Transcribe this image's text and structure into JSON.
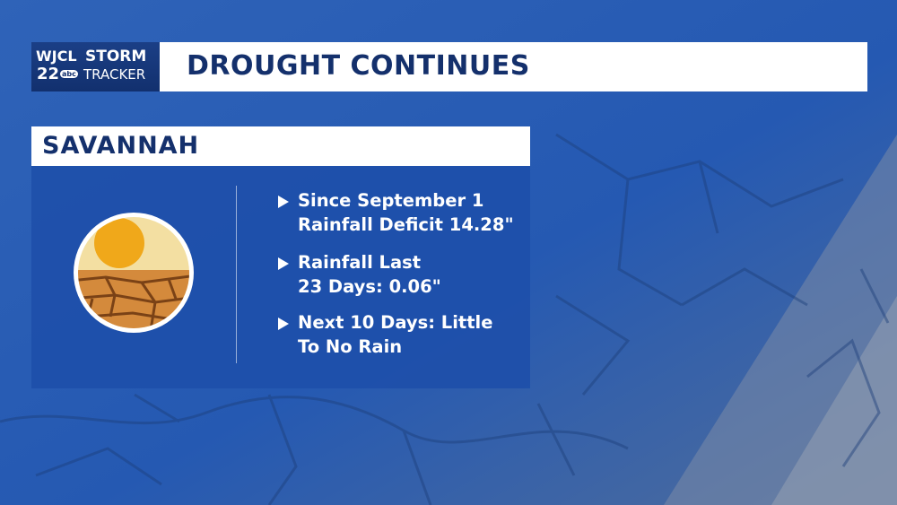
{
  "logo": {
    "station": "WJCL",
    "channel": "22",
    "network": "abc",
    "brand_top": "STORM",
    "brand_bottom": "TRACKER"
  },
  "header": {
    "title": "DROUGHT CONTINUES"
  },
  "panel": {
    "title": "SAVANNAH",
    "bullets": [
      {
        "lines": [
          "Since September 1",
          "Rainfall Deficit 14.28\""
        ]
      },
      {
        "lines": [
          "Rainfall Last",
          "23 Days: 0.06\""
        ]
      },
      {
        "lines": [
          "Next 10 Days: Little",
          "To No Rain"
        ]
      }
    ]
  }
}
